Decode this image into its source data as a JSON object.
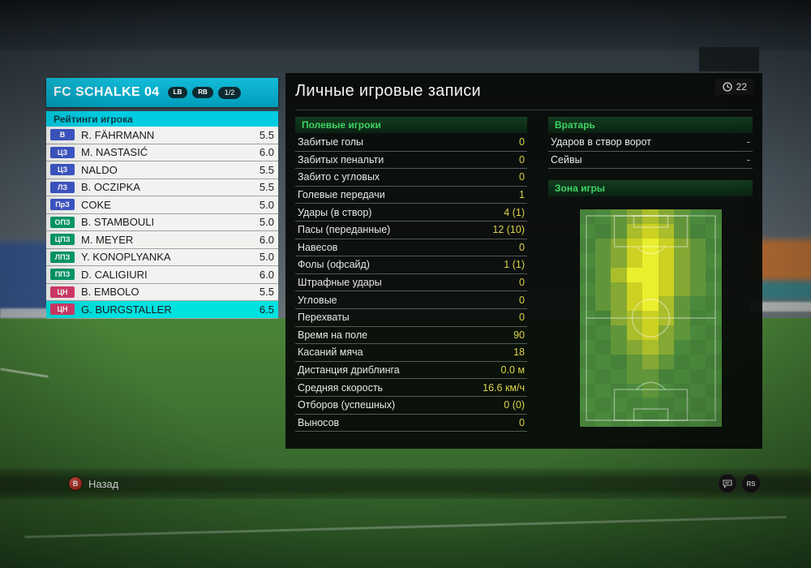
{
  "team_panel": {
    "team_name": "FC SCHALKE 04",
    "nav_left_label": "LB",
    "nav_right_label": "RB",
    "page_indicator": "1/2",
    "ratings_header": "Рейтинги игрока",
    "players": [
      {
        "pos": "В",
        "pos_type": "gk",
        "name": "R. FÄHRMANN",
        "rating": "5.5"
      },
      {
        "pos": "ЦЗ",
        "pos_type": "def",
        "name": "M. NASTASIĆ",
        "rating": "6.0"
      },
      {
        "pos": "ЦЗ",
        "pos_type": "def",
        "name": "NALDO",
        "rating": "5.5"
      },
      {
        "pos": "ЛЗ",
        "pos_type": "def",
        "name": "B. OCZIPKA",
        "rating": "5.5"
      },
      {
        "pos": "ПрЗ",
        "pos_type": "def",
        "name": "COKE",
        "rating": "5.0"
      },
      {
        "pos": "ОПЗ",
        "pos_type": "mid",
        "name": "B. STAMBOULI",
        "rating": "5.0"
      },
      {
        "pos": "ЦПЗ",
        "pos_type": "mid",
        "name": "M. MEYER",
        "rating": "6.0"
      },
      {
        "pos": "ЛПЗ",
        "pos_type": "mid",
        "name": "Y. KONOPLYANKA",
        "rating": "5.0"
      },
      {
        "pos": "ППЗ",
        "pos_type": "mid",
        "name": "D. CALIGIURI",
        "rating": "6.0"
      },
      {
        "pos": "ЦН",
        "pos_type": "fwd",
        "name": "B. EMBOLO",
        "rating": "5.5"
      },
      {
        "pos": "ЦН",
        "pos_type": "fwd",
        "name": "G. BURGSTALLER",
        "rating": "6.5",
        "selected": true
      }
    ]
  },
  "main": {
    "title": "Личные игровые записи",
    "match_time": "22",
    "sections": {
      "field_players": "Полевые игроки",
      "goalkeeper": "Вратарь",
      "zone": "Зона игры"
    },
    "field_stats": [
      {
        "label": "Забитые голы",
        "value": "0"
      },
      {
        "label": "Забитых пенальти",
        "value": "0"
      },
      {
        "label": "Забито с угловых",
        "value": "0"
      },
      {
        "label": "Голевые передачи",
        "value": "1"
      },
      {
        "label": "Удары (в створ)",
        "value": "4 (1)"
      },
      {
        "label": "Пасы (переданные)",
        "value": "12 (10)"
      },
      {
        "label": "Навесов",
        "value": "0"
      },
      {
        "label": "Фолы (офсайд)",
        "value": "1 (1)"
      },
      {
        "label": "Штрафные удары",
        "value": "0"
      },
      {
        "label": "Угловые",
        "value": "0"
      },
      {
        "label": "Перехваты",
        "value": "0"
      },
      {
        "label": "Время на поле",
        "value": "90"
      },
      {
        "label": "Касаний мяча",
        "value": "18"
      },
      {
        "label": "Дистанция дриблинга",
        "value": "0.0 м"
      },
      {
        "label": "Средняя скорость",
        "value": "16.6 км/ч"
      },
      {
        "label": "Отборов (успешных)",
        "value": "0 (0)"
      },
      {
        "label": "Выносов",
        "value": "0"
      }
    ],
    "gk_stats": [
      {
        "label": "Ударов в створ ворот",
        "value": "-",
        "dash": true
      },
      {
        "label": "Сейвы",
        "value": "-",
        "dash": true
      }
    ]
  },
  "footer": {
    "back_label": "Назад",
    "back_button_glyph": "B",
    "rs_icon_label": "RS"
  },
  "heatmap": {
    "cols": 9,
    "rows": 15,
    "palette": [
      "#4a8a3c",
      "#61953a",
      "#85a834",
      "#aabd2a",
      "#ccd122",
      "#e9ef2d"
    ],
    "base_alt": "#468239",
    "cells": [
      [
        0,
        0,
        1,
        2,
        3,
        2,
        1,
        0,
        0
      ],
      [
        0,
        0,
        1,
        3,
        4,
        3,
        1,
        0,
        0
      ],
      [
        0,
        1,
        2,
        4,
        5,
        4,
        2,
        1,
        0
      ],
      [
        0,
        1,
        2,
        4,
        5,
        4,
        2,
        1,
        0
      ],
      [
        0,
        1,
        3,
        5,
        5,
        4,
        2,
        1,
        0
      ],
      [
        0,
        1,
        2,
        4,
        5,
        4,
        2,
        1,
        0
      ],
      [
        0,
        1,
        2,
        4,
        5,
        3,
        1,
        0,
        0
      ],
      [
        0,
        0,
        2,
        3,
        4,
        3,
        1,
        0,
        0
      ],
      [
        0,
        0,
        1,
        3,
        4,
        2,
        1,
        0,
        0
      ],
      [
        0,
        0,
        1,
        2,
        3,
        2,
        0,
        0,
        0
      ],
      [
        0,
        0,
        0,
        1,
        2,
        1,
        0,
        0,
        0
      ],
      [
        0,
        0,
        0,
        1,
        1,
        0,
        0,
        0,
        0
      ],
      [
        0,
        0,
        0,
        0,
        1,
        0,
        0,
        0,
        0
      ],
      [
        0,
        0,
        0,
        0,
        0,
        0,
        0,
        0,
        0
      ],
      [
        0,
        0,
        0,
        0,
        0,
        0,
        0,
        0,
        0
      ]
    ]
  },
  "colors": {
    "accent_cyan": "#00cde2",
    "selected_row": "#00e2e0",
    "value_yellow": "#ddd34b",
    "section_green": "#3fd463"
  }
}
